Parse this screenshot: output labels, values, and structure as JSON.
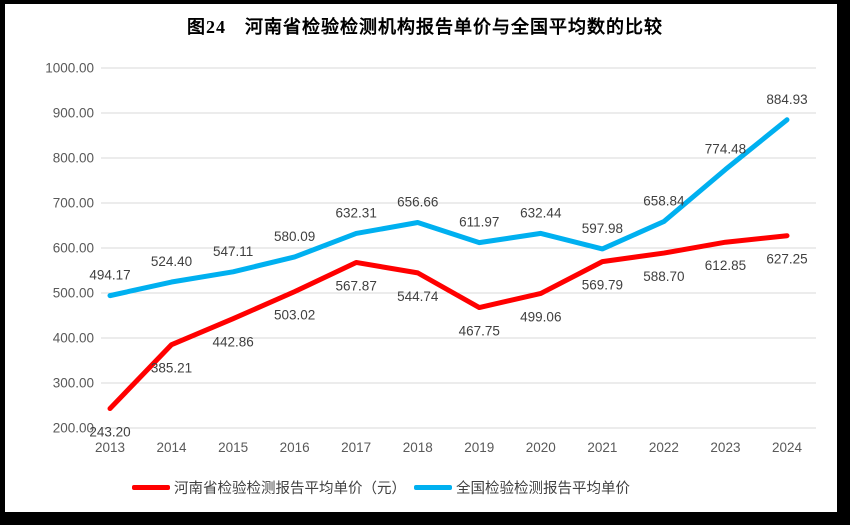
{
  "title": "图24　河南省检验检测机构报告单价与全国平均数的比较",
  "chart_data": {
    "type": "line",
    "x": [
      "2013",
      "2014",
      "2015",
      "2016",
      "2017",
      "2018",
      "2019",
      "2020",
      "2021",
      "2022",
      "2023",
      "2024"
    ],
    "series": [
      {
        "name": "河南省检验检测报告平均单价（元）",
        "color": "#FF0000",
        "label_position": "below",
        "values": [
          243.2,
          385.21,
          442.86,
          503.02,
          567.87,
          544.74,
          467.75,
          499.06,
          569.79,
          588.7,
          612.85,
          627.25
        ]
      },
      {
        "name": "全国检验检测报告平均单价",
        "color": "#00B0F0",
        "label_position": "above",
        "values": [
          494.17,
          524.4,
          547.11,
          580.09,
          632.31,
          656.66,
          611.97,
          632.44,
          597.98,
          658.84,
          774.48,
          884.93
        ]
      }
    ],
    "ylim": [
      200,
      1000
    ],
    "yticks": [
      "1000.00",
      "900.00",
      "800.00",
      "700.00",
      "600.00",
      "500.00",
      "400.00",
      "300.00",
      "200.00"
    ],
    "grid": true,
    "legend_position": "bottom",
    "colors": {
      "gridline": "#D9D9D9",
      "axis_text": "#595959",
      "data_label": "#404040",
      "frame": "#000000",
      "background": "#FFFFFF"
    }
  }
}
